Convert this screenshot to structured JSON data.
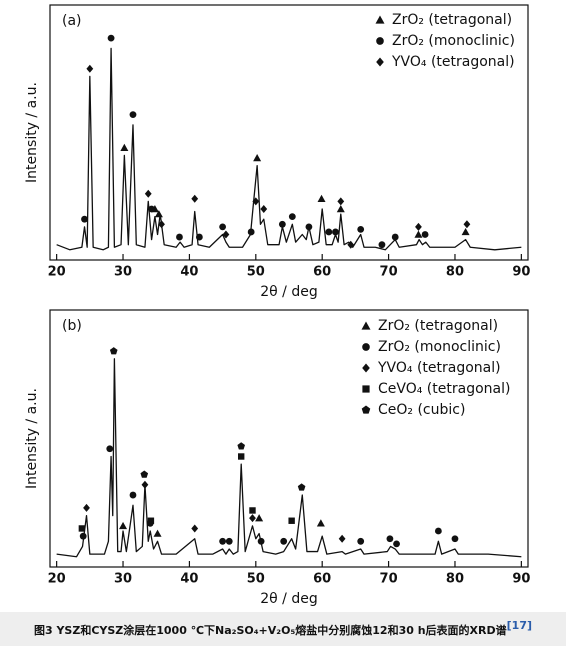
{
  "chart_data": [
    {
      "type": "line",
      "panel": "(a)",
      "xlabel": "2θ / deg",
      "ylabel": "Intensity / a.u.",
      "xlim": [
        19,
        91
      ],
      "xticks": [
        20,
        30,
        40,
        50,
        60,
        70,
        80,
        90
      ],
      "ylim": [
        0,
        100
      ],
      "color": "#111111",
      "x": [
        20,
        22,
        23.8,
        24.2,
        24.6,
        25,
        25.5,
        27,
        27.8,
        28.2,
        28.7,
        29.7,
        30.2,
        30.8,
        31.5,
        32,
        33.3,
        33.8,
        34.3,
        34.8,
        35.2,
        35.6,
        36.2,
        38,
        38.6,
        39.2,
        40.4,
        40.8,
        41.3,
        43,
        45,
        45.5,
        46,
        48,
        49.2,
        49.6,
        50.2,
        50.7,
        51.2,
        51.8,
        53.5,
        54,
        54.6,
        55.5,
        56,
        57,
        57.6,
        58,
        58.6,
        59.5,
        60,
        60.6,
        61.5,
        62,
        62.4,
        62.8,
        63.3,
        64,
        64.6,
        65.8,
        66.3,
        68,
        69.5,
        71,
        71.6,
        74.2,
        74.6,
        75.1,
        75.6,
        76.2,
        80,
        81.6,
        82.3,
        86,
        90
      ],
      "values": [
        6,
        4,
        5,
        13,
        5,
        72,
        5,
        4,
        5,
        83,
        5,
        6,
        41,
        6,
        53,
        6,
        5,
        23,
        8,
        17,
        10,
        18,
        6,
        5,
        7,
        5,
        6,
        19,
        6,
        5,
        10,
        7,
        5,
        5,
        10,
        21,
        37,
        14,
        16,
        6,
        6,
        13,
        7,
        14,
        7,
        10,
        8,
        13,
        6,
        7,
        20,
        6,
        6,
        10,
        7,
        18,
        6,
        7,
        5,
        10,
        5,
        5,
        4,
        8,
        5,
        6,
        8,
        6,
        7,
        5,
        5,
        8,
        5,
        4,
        5
      ],
      "series": [
        {
          "name": "ZrO₂ (tetragonal)",
          "marker": "triangle",
          "color": "#111111",
          "x": [
            30.2,
            34.8,
            35.4,
            50.2,
            59.9,
            62.8,
            74.5,
            81.6
          ],
          "values": [
            44,
            20,
            18,
            40,
            24,
            20,
            10,
            11
          ]
        },
        {
          "name": "ZrO₂ (monoclinic)",
          "marker": "circle",
          "color": "#111111",
          "x": [
            24.2,
            28.2,
            31.5,
            34.3,
            38.5,
            41.5,
            45,
            49.3,
            54,
            55.5,
            58,
            61,
            62,
            65.8,
            69,
            71,
            75.5
          ],
          "values": [
            16,
            87,
            57,
            20,
            9,
            9,
            13,
            11,
            14,
            17,
            13,
            11,
            11,
            12,
            6,
            9,
            10
          ]
        },
        {
          "name": "YVO₄ (tetragonal)",
          "marker": "diamond",
          "color": "#111111",
          "x": [
            25,
            33.8,
            35.8,
            40.8,
            45.5,
            50,
            51.2,
            62.8,
            64.3,
            74.5,
            81.8
          ],
          "values": [
            75,
            26,
            14,
            24,
            10,
            23,
            20,
            23,
            6,
            13,
            14
          ]
        }
      ]
    },
    {
      "type": "line",
      "panel": "(b)",
      "xlabel": "2θ / deg",
      "ylabel": "Intensity / a.u.",
      "xlim": [
        19,
        91
      ],
      "xticks": [
        20,
        30,
        40,
        50,
        60,
        70,
        80,
        90
      ],
      "ylim": [
        0,
        100
      ],
      "color": "#111111",
      "x": [
        20,
        23,
        23.9,
        24.5,
        25,
        27.2,
        27.8,
        28.2,
        28.45,
        28.7,
        29.2,
        29.7,
        30,
        30.5,
        31.5,
        32,
        32.9,
        33.3,
        33.8,
        34.1,
        34.6,
        35.2,
        35.8,
        38,
        40.8,
        41.3,
        43.5,
        45,
        45.5,
        46,
        46.6,
        47.3,
        47.8,
        48.4,
        49.5,
        50,
        50.5,
        51.1,
        53,
        54.2,
        55.4,
        56,
        57,
        57.7,
        59.3,
        60,
        60.7,
        63,
        63.5,
        65.8,
        66.3,
        69.8,
        70.3,
        71,
        71.6,
        77,
        77.5,
        78,
        80,
        80.5,
        85,
        90
      ],
      "values": [
        5,
        4,
        8,
        20,
        5,
        5,
        10,
        43,
        20,
        81,
        6,
        6,
        14,
        6,
        24,
        6,
        8,
        32,
        10,
        14,
        7,
        10,
        5,
        5,
        11,
        5,
        5,
        7,
        5,
        7,
        5,
        6,
        40,
        6,
        16,
        11,
        13,
        6,
        5,
        6,
        11,
        7,
        28,
        6,
        6,
        12,
        5,
        6,
        5,
        7,
        5,
        6,
        8,
        7,
        5,
        5,
        10,
        5,
        7,
        5,
        5,
        4
      ],
      "series": [
        {
          "name": "ZrO₂ (tetragonal)",
          "marker": "triangle",
          "color": "#111111",
          "x": [
            30,
            35.2,
            50.5,
            59.8
          ],
          "values": [
            16,
            13,
            19,
            17
          ]
        },
        {
          "name": "ZrO₂ (monoclinic)",
          "marker": "circle",
          "color": "#111111",
          "x": [
            24,
            28,
            31.5,
            34.1,
            45,
            46,
            50.8,
            54.2,
            65.8,
            70.2,
            71.2,
            77.5,
            80
          ],
          "values": [
            12,
            46,
            28,
            17,
            10,
            10,
            10,
            10,
            10,
            11,
            9,
            14,
            11
          ]
        },
        {
          "name": "YVO₄ (tetragonal)",
          "marker": "diamond",
          "color": "#111111",
          "x": [
            24.5,
            33.3,
            40.8,
            49.5,
            63
          ],
          "values": [
            23,
            32,
            15,
            19,
            11
          ]
        },
        {
          "name": "CeVO₄ (tetragonal)",
          "marker": "square",
          "color": "#111111",
          "x": [
            23.8,
            34.2,
            47.8,
            49.5,
            55.4
          ],
          "values": [
            15,
            18,
            43,
            22,
            18
          ]
        },
        {
          "name": "CeO₂ (cubic)",
          "marker": "pentagon",
          "color": "#111111",
          "x": [
            28.6,
            33.2,
            47.8,
            56.9
          ],
          "values": [
            84,
            36,
            47,
            31
          ]
        }
      ]
    }
  ],
  "caption": {
    "text": "图3   YSZ和CYSZ涂层在1000 ℃下Na₂SO₄+V₂O₅熔盐中分别腐蚀12和30 h后表面的XRD谱",
    "ref": "[17]"
  }
}
